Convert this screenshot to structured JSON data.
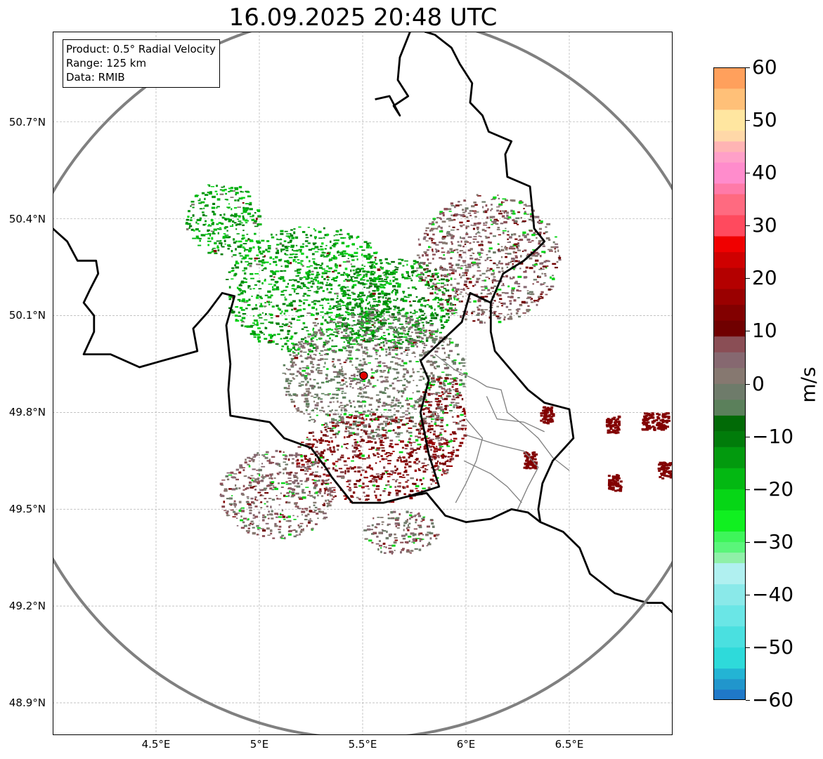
{
  "title": "16.09.2025 20:48 UTC",
  "info": {
    "product": "Product: 0.5° Radial Velocity",
    "range": "Range: 125 km",
    "source": "Data: RMIB"
  },
  "map": {
    "lon_range": [
      4.0,
      7.0
    ],
    "lat_range": [
      48.8,
      50.98
    ],
    "radar_site": {
      "lon": 5.505,
      "lat": 49.914
    },
    "range_km": 125,
    "lat_ticks": [
      {
        "value": 48.9,
        "label": "48.9°N"
      },
      {
        "value": 49.2,
        "label": "49.2°N"
      },
      {
        "value": 49.5,
        "label": "49.5°N"
      },
      {
        "value": 49.8,
        "label": "49.8°N"
      },
      {
        "value": 50.1,
        "label": "50.1°N"
      },
      {
        "value": 50.4,
        "label": "50.4°N"
      },
      {
        "value": 50.7,
        "label": "50.7°N"
      }
    ],
    "lon_ticks": [
      {
        "value": 4.5,
        "label": "4.5°E"
      },
      {
        "value": 5.0,
        "label": "5°E"
      },
      {
        "value": 5.5,
        "label": "5.5°E"
      },
      {
        "value": 6.0,
        "label": "6°E"
      },
      {
        "value": 6.5,
        "label": "6.5°E"
      }
    ],
    "colors": {
      "border": "#000000",
      "range_ring": "#808080",
      "admin_border": "#7f7f7f",
      "grid": "#b0b0b0",
      "site_marker": "#e00000"
    },
    "echo_regions": [
      {
        "name": "inbound-north-cluster",
        "lon": 5.25,
        "lat": 50.18,
        "rlon": 0.42,
        "rlat": 0.2,
        "dominant": -15
      },
      {
        "name": "inbound-northeast-cluster",
        "lon": 5.65,
        "lat": 50.14,
        "rlon": 0.3,
        "rlat": 0.14,
        "dominant": -12
      },
      {
        "name": "near-zero-central-cluster",
        "lon": 5.55,
        "lat": 49.92,
        "rlon": 0.45,
        "rlat": 0.2,
        "dominant": 0
      },
      {
        "name": "outbound-south-cluster",
        "lon": 5.55,
        "lat": 49.66,
        "rlon": 0.38,
        "rlat": 0.14,
        "dominant": 12
      },
      {
        "name": "outbound-east-cluster",
        "lon": 5.88,
        "lat": 49.78,
        "rlon": 0.12,
        "rlat": 0.14,
        "dominant": 12
      },
      {
        "name": "southwest-light-cluster",
        "lon": 5.08,
        "lat": 49.55,
        "rlon": 0.28,
        "rlat": 0.14,
        "dominant": 4
      },
      {
        "name": "south-light-cluster",
        "lon": 5.68,
        "lat": 49.43,
        "rlon": 0.18,
        "rlat": 0.07,
        "dominant": 3
      },
      {
        "name": "northeast-sparse-cluster",
        "lon": 6.1,
        "lat": 50.28,
        "rlon": 0.35,
        "rlat": 0.2,
        "dominant": 5
      },
      {
        "name": "west-sparse-cluster",
        "lon": 4.82,
        "lat": 50.4,
        "rlon": 0.18,
        "rlat": 0.12,
        "dominant": -15
      }
    ],
    "distant_cells": [
      {
        "lon": 6.39,
        "lat": 49.79,
        "value": 12
      },
      {
        "lon": 6.31,
        "lat": 49.65,
        "value": 12
      },
      {
        "lon": 6.71,
        "lat": 49.76,
        "value": 12
      },
      {
        "lon": 6.88,
        "lat": 49.77,
        "value": 12
      },
      {
        "lon": 6.95,
        "lat": 49.77,
        "value": 12
      },
      {
        "lon": 6.96,
        "lat": 49.62,
        "value": 12
      },
      {
        "lon": 6.72,
        "lat": 49.58,
        "value": 12
      }
    ]
  },
  "colorbar": {
    "label": "m/s",
    "min": -60,
    "max": 60,
    "ticks": [
      {
        "value": 60,
        "label": "60"
      },
      {
        "value": 50,
        "label": "50"
      },
      {
        "value": 40,
        "label": "40"
      },
      {
        "value": 30,
        "label": "30"
      },
      {
        "value": 20,
        "label": "20"
      },
      {
        "value": 10,
        "label": "10"
      },
      {
        "value": 0,
        "label": "0"
      },
      {
        "value": -10,
        "label": "−10"
      },
      {
        "value": -20,
        "label": "−20"
      },
      {
        "value": -30,
        "label": "−30"
      },
      {
        "value": -40,
        "label": "−40"
      },
      {
        "value": -50,
        "label": "−50"
      },
      {
        "value": -60,
        "label": "−60"
      }
    ],
    "bands": [
      {
        "from": -60,
        "to": -58,
        "color": "#1f78c8"
      },
      {
        "from": -58,
        "to": -56,
        "color": "#2196cc"
      },
      {
        "from": -56,
        "to": -54,
        "color": "#23b4d4"
      },
      {
        "from": -54,
        "to": -50,
        "color": "#2edada"
      },
      {
        "from": -50,
        "to": -46,
        "color": "#4ae0e0"
      },
      {
        "from": -46,
        "to": -42,
        "color": "#6ae6e6"
      },
      {
        "from": -42,
        "to": -38,
        "color": "#8ae9e9"
      },
      {
        "from": -38,
        "to": -34,
        "color": "#b0f0f0"
      },
      {
        "from": -34,
        "to": -32,
        "color": "#8ff0a8"
      },
      {
        "from": -32,
        "to": -30,
        "color": "#5af57a"
      },
      {
        "from": -30,
        "to": -28,
        "color": "#3ef55a"
      },
      {
        "from": -28,
        "to": -24,
        "color": "#10f020"
      },
      {
        "from": -24,
        "to": -20,
        "color": "#06d616"
      },
      {
        "from": -20,
        "to": -16,
        "color": "#03b812"
      },
      {
        "from": -16,
        "to": -12,
        "color": "#029a0e"
      },
      {
        "from": -12,
        "to": -9,
        "color": "#017c0a"
      },
      {
        "from": -9,
        "to": -6,
        "color": "#016a06"
      },
      {
        "from": -6,
        "to": -3,
        "color": "#5b805b"
      },
      {
        "from": -3,
        "to": 0,
        "color": "#6e7b6a"
      },
      {
        "from": 0,
        "to": 3,
        "color": "#867870"
      },
      {
        "from": 3,
        "to": 6,
        "color": "#866870"
      },
      {
        "from": 6,
        "to": 9,
        "color": "#8a4e55"
      },
      {
        "from": 9,
        "to": 12,
        "color": "#700000"
      },
      {
        "from": 12,
        "to": 15,
        "color": "#820000"
      },
      {
        "from": 15,
        "to": 18,
        "color": "#9a0000"
      },
      {
        "from": 18,
        "to": 22,
        "color": "#b40000"
      },
      {
        "from": 22,
        "to": 25,
        "color": "#cf0000"
      },
      {
        "from": 25,
        "to": 28,
        "color": "#f00000"
      },
      {
        "from": 28,
        "to": 32,
        "color": "#ff4a5e"
      },
      {
        "from": 32,
        "to": 36,
        "color": "#ff6a80"
      },
      {
        "from": 36,
        "to": 38,
        "color": "#ff7aa8"
      },
      {
        "from": 38,
        "to": 42,
        "color": "#ff8ccc"
      },
      {
        "from": 42,
        "to": 44,
        "color": "#ffa0c8"
      },
      {
        "from": 44,
        "to": 46,
        "color": "#ffb4b4"
      },
      {
        "from": 46,
        "to": 48,
        "color": "#ffd8a8"
      },
      {
        "from": 48,
        "to": 52,
        "color": "#ffe6a0"
      },
      {
        "from": 52,
        "to": 56,
        "color": "#ffc078"
      },
      {
        "from": 56,
        "to": 60,
        "color": "#ffa05c"
      }
    ]
  }
}
